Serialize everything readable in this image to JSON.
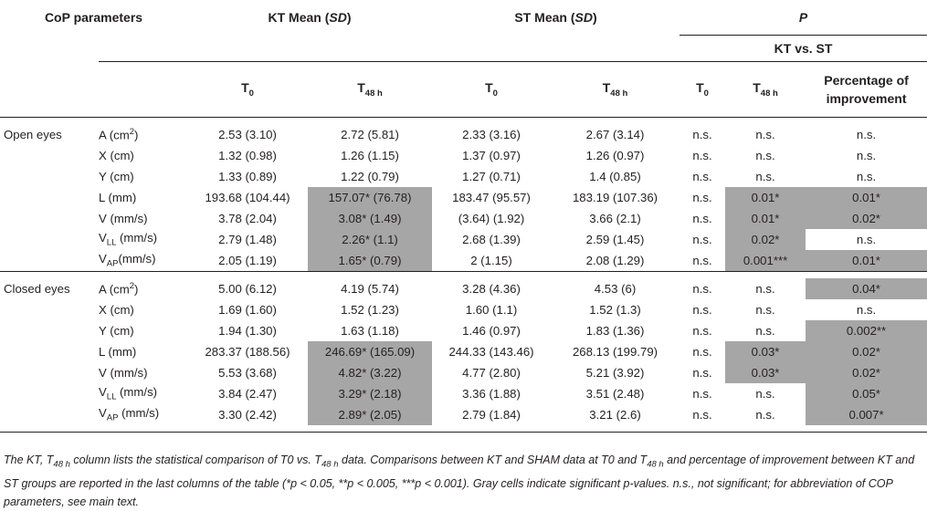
{
  "header": {
    "cop_parameters": "CoP parameters",
    "kt_mean": "KT Mean",
    "st_mean": "ST Mean",
    "sd": "SD",
    "p": "P",
    "kt_vs_st": "KT vs. ST",
    "t0": "T",
    "t0_sub": "0",
    "t48": "T",
    "t48_sub": "48 h",
    "pct_line1": "Percentage of",
    "pct_line2": "improvement"
  },
  "groups": [
    {
      "label": "Open eyes",
      "rows": [
        {
          "param": "A (cm",
          "sup": "2",
          "tail": ")",
          "kt_t0": "2.53 (3.10)",
          "kt_t48": "2.72 (5.81)",
          "st_t0": "2.33 (3.16)",
          "st_t48": "2.67 (3.14)",
          "p_t0": "n.s.",
          "p_t48": "n.s.",
          "pct": "n.s."
        },
        {
          "param": "X (cm)",
          "kt_t0": "1.32 (0.98)",
          "kt_t48": "1.26 (1.15)",
          "st_t0": "1.37 (0.97)",
          "st_t48": "1.26 (0.97)",
          "p_t0": "n.s.",
          "p_t48": "n.s.",
          "pct": "n.s."
        },
        {
          "param": "Y (cm)",
          "kt_t0": "1.33 (0.89)",
          "kt_t48": "1.22 (0.79)",
          "st_t0": "1.27 (0.71)",
          "st_t48": "1.4 (0.85)",
          "p_t0": "n.s.",
          "p_t48": "n.s.",
          "pct": "n.s."
        },
        {
          "param": "L (mm)",
          "kt_t0": "193.68 (104.44)",
          "kt_t48": "157.07* (76.78)",
          "st_t0": "183.47 (95.57)",
          "st_t48": "183.19 (107.36)",
          "p_t0": "n.s.",
          "p_t48": "0.01*",
          "pct": "0.01*"
        },
        {
          "param": "V (mm/s)",
          "kt_t0": "3.78 (2.04)",
          "kt_t48": "3.08* (1.49)",
          "st_t0": "(3.64) (1.92)",
          "st_t48": "3.66 (2.1)",
          "p_t0": "n.s.",
          "p_t48": "0.01*",
          "pct": "0.02*"
        },
        {
          "param": "V",
          "sub": "LL",
          "tail": " (mm/s)",
          "kt_t0": "2.79 (1.48)",
          "kt_t48": "2.26* (1.1)",
          "st_t0": "2.68 (1.39)",
          "st_t48": "2.59 (1.45)",
          "p_t0": "n.s.",
          "p_t48": "0.02*",
          "pct": "n.s."
        },
        {
          "param": "V",
          "sub": "AP",
          "tail": "(mm/s)",
          "kt_t0": "2.05 (1.19)",
          "kt_t48": "1.65* (0.79)",
          "st_t0": "2 (1.15)",
          "st_t48": "2.08 (1.29)",
          "p_t0": "n.s.",
          "p_t48": "0.001***",
          "pct": "0.01*"
        }
      ]
    },
    {
      "label": "Closed eyes",
      "rows": [
        {
          "param": "A (cm",
          "sup": "2",
          "tail": ")",
          "kt_t0": "5.00 (6.12)",
          "kt_t48": "4.19 (5.74)",
          "st_t0": "3.28 (4.36)",
          "st_t48": "4.53 (6)",
          "p_t0": "n.s.",
          "p_t48": "n.s.",
          "pct": "0.04*"
        },
        {
          "param": "X (cm)",
          "kt_t0": "1.69 (1.60)",
          "kt_t48": "1.52 (1.23)",
          "st_t0": "1.60 (1.1)",
          "st_t48": "1.52 (1.3)",
          "p_t0": "n.s.",
          "p_t48": "n.s.",
          "pct": "n.s."
        },
        {
          "param": "Y (cm)",
          "kt_t0": "1.94 (1.30)",
          "kt_t48": "1.63 (1.18)",
          "st_t0": "1.46 (0.97)",
          "st_t48": "1.83 (1.36)",
          "p_t0": "n.s.",
          "p_t48": "n.s.",
          "pct": "0.002**"
        },
        {
          "param": "L (mm)",
          "kt_t0": "283.37 (188.56)",
          "kt_t48": "246.69* (165.09)",
          "st_t0": "244.33 (143.46)",
          "st_t48": "268.13 (199.79)",
          "p_t0": "n.s.",
          "p_t48": "0.03*",
          "pct": "0.02*"
        },
        {
          "param": "V (mm/s)",
          "kt_t0": "5.53 (3.68)",
          "kt_t48": "4.82* (3.22)",
          "st_t0": "4.77 (2.80)",
          "st_t48": "5.21 (3.92)",
          "p_t0": "n.s.",
          "p_t48": "0.03*",
          "pct": "0.02*"
        },
        {
          "param": "V",
          "sub": "LL",
          "tail": " (mm/s)",
          "kt_t0": "3.84 (2.47)",
          "kt_t48": "3.29* (2.18)",
          "st_t0": "3.36 (1.88)",
          "st_t48": "3.51 (2.48)",
          "p_t0": "n.s.",
          "p_t48": "n.s.",
          "pct": "0.05*"
        },
        {
          "param": "V",
          "sub": "AP",
          "tail": " (mm/s)",
          "kt_t0": "3.30 (2.42)",
          "kt_t48": "2.89* (2.05)",
          "st_t0": "2.79 (1.84)",
          "st_t48": "3.21 (2.6)",
          "p_t0": "n.s.",
          "p_t48": "n.s.",
          "pct": "0.007*"
        }
      ]
    }
  ],
  "caption": {
    "s1": "The KT, T",
    "s1_sub": "48 h",
    "s2": " column lists the statistical comparison of T0 vs. T",
    "s2_sub": "48 h",
    "s3": " data. Comparisons between KT and SHAM data at T0 and T",
    "s3_sub": "48 h",
    "s4": " and percentage of improvement between KT and ST groups are reported in the last columns of the table (",
    "s5": "*p < 0.05, **p < 0.005, ***p < 0.001",
    "s6": "). Gray cells indicate significant p-values. n.s., not significant; for abbreviation of COP parameters, see main text."
  }
}
